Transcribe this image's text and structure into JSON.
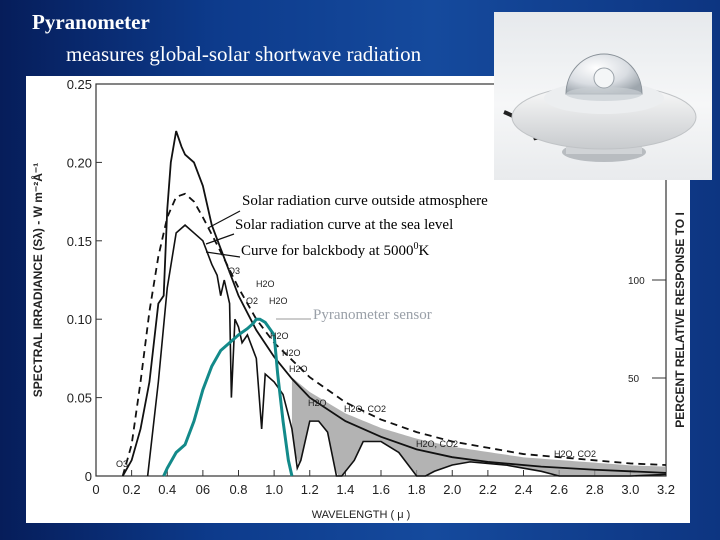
{
  "slide": {
    "title": "Pyranometer",
    "subtitle": "measures global-solar shortwave radiation"
  },
  "annotations": {
    "outside_atmosphere": "Solar radiation curve outside atmosphere",
    "sea_level": "Solar radiation curve at the sea level",
    "blackbody_prefix": "Curve for balckbody at 5000",
    "blackbody_sup": "0",
    "blackbody_suffix": "K",
    "sensor": "Pyranometer sensor"
  },
  "chart_data": {
    "type": "line",
    "xlabel": "WAVELENGTH   ( μ )",
    "ylabel": "SPECTRAL IRRADIANCE (Sλ) - W m⁻²Å⁻¹",
    "y2label": "PERCENT RELATIVE RESPONSE TO I",
    "xlim": [
      0,
      3.2
    ],
    "ylim": [
      0,
      0.25
    ],
    "y2lim": [
      0,
      200
    ],
    "x_tick_labels": [
      "0",
      "0.2",
      "0.4",
      "06",
      "0.8",
      "1.0",
      "1.2",
      "1.4",
      "1.6",
      "1.8",
      "2.0",
      "2.2",
      "2.4",
      "2.6",
      "2.8",
      "3.0",
      "3.2"
    ],
    "y_tick_labels": [
      "0",
      "0.05",
      "0.10",
      "0.15",
      "0.20",
      "0.25"
    ],
    "y2_tick_labels": [
      "50",
      "100"
    ],
    "absorption_labels": [
      "O3",
      "H2O",
      "O2",
      "H2O",
      "H2O",
      "H2O",
      "H2O",
      "H2O",
      "H2O, CO2",
      "H2O, CO2",
      "H2O, CO2",
      "O3"
    ],
    "series": [
      {
        "role": "outside-atmosphere",
        "x": [
          0.15,
          0.2,
          0.25,
          0.3,
          0.35,
          0.38,
          0.4,
          0.42,
          0.45,
          0.48,
          0.5,
          0.55,
          0.6,
          0.65,
          0.7,
          0.8,
          0.9,
          1.0,
          1.1,
          1.2,
          1.4,
          1.6,
          1.8,
          2.0,
          2.2,
          2.5,
          2.8,
          3.0,
          3.2
        ],
        "values": [
          0.0,
          0.01,
          0.03,
          0.06,
          0.11,
          0.115,
          0.17,
          0.2,
          0.22,
          0.21,
          0.205,
          0.2,
          0.185,
          0.16,
          0.145,
          0.115,
          0.093,
          0.076,
          0.062,
          0.05,
          0.035,
          0.025,
          0.017,
          0.012,
          0.009,
          0.006,
          0.004,
          0.003,
          0.002
        ]
      },
      {
        "role": "sea-level",
        "x": [
          0.29,
          0.3,
          0.35,
          0.4,
          0.45,
          0.5,
          0.55,
          0.6,
          0.65,
          0.68,
          0.7,
          0.72,
          0.75,
          0.76,
          0.78,
          0.8,
          0.82,
          0.85,
          0.9,
          0.93,
          0.95,
          1.0,
          1.05,
          1.1,
          1.13,
          1.15,
          1.2,
          1.25,
          1.3,
          1.35,
          1.38,
          1.45,
          1.5,
          1.6,
          1.7,
          1.8,
          1.85,
          1.9,
          2.0,
          2.1,
          2.2,
          2.3,
          2.4,
          2.5,
          2.6,
          2.7,
          2.8,
          3.0,
          3.2
        ],
        "values": [
          0.0,
          0.01,
          0.06,
          0.12,
          0.155,
          0.16,
          0.155,
          0.15,
          0.135,
          0.128,
          0.115,
          0.125,
          0.11,
          0.05,
          0.1,
          0.095,
          0.085,
          0.09,
          0.075,
          0.03,
          0.065,
          0.06,
          0.052,
          0.03,
          0.005,
          0.01,
          0.035,
          0.035,
          0.028,
          0.0,
          0.0,
          0.01,
          0.022,
          0.022,
          0.015,
          0.0,
          0.0,
          0.003,
          0.007,
          0.009,
          0.008,
          0.007,
          0.005,
          0.003,
          0.0,
          0.0,
          0.0,
          0.0,
          0.001
        ]
      },
      {
        "role": "blackbody-5000K",
        "x": [
          0.15,
          0.2,
          0.25,
          0.3,
          0.35,
          0.4,
          0.45,
          0.5,
          0.55,
          0.6,
          0.7,
          0.8,
          0.9,
          1.0,
          1.2,
          1.4,
          1.6,
          1.8,
          2.0,
          2.2,
          2.4,
          2.6,
          2.8,
          3.0,
          3.2
        ],
        "values": [
          0.0,
          0.02,
          0.06,
          0.105,
          0.14,
          0.165,
          0.178,
          0.18,
          0.175,
          0.165,
          0.143,
          0.12,
          0.1,
          0.085,
          0.063,
          0.047,
          0.036,
          0.028,
          0.022,
          0.018,
          0.014,
          0.012,
          0.01,
          0.008,
          0.007
        ]
      },
      {
        "role": "pyranometer-sensor",
        "x": [
          0.38,
          0.4,
          0.45,
          0.5,
          0.55,
          0.6,
          0.65,
          0.7,
          0.75,
          0.8,
          0.85,
          0.88,
          0.9,
          0.92,
          0.95,
          1.0,
          1.02,
          1.05,
          1.08,
          1.1
        ],
        "values": [
          0.0,
          0.005,
          0.015,
          0.02,
          0.035,
          0.055,
          0.07,
          0.08,
          0.085,
          0.09,
          0.094,
          0.097,
          0.1,
          0.1,
          0.098,
          0.09,
          0.065,
          0.035,
          0.01,
          0.0
        ]
      }
    ]
  }
}
